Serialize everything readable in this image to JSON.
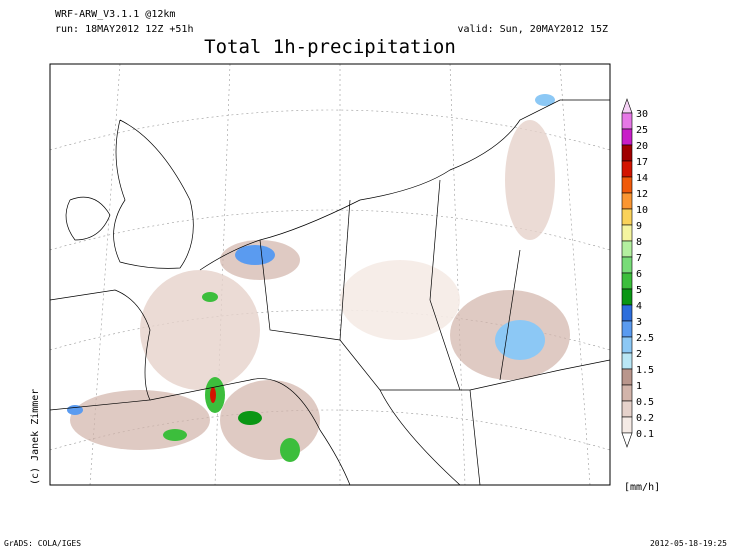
{
  "header": {
    "model": "WRF-ARW_V3.1.1 @12km",
    "run": "run: 18MAY2012 12Z +51h",
    "valid": "valid: Sun, 20MAY2012 15Z",
    "title": "Total 1h-precipitation"
  },
  "credit": "(c) Janek Zimmer",
  "legend": {
    "levels": [
      "30",
      "25",
      "20",
      "17",
      "14",
      "12",
      "10",
      "9",
      "8",
      "7",
      "6",
      "5",
      "4",
      "3",
      "2.5",
      "2",
      "1.5",
      "1",
      "0.5",
      "0.2",
      "0.1"
    ],
    "colors": [
      "#f5d2f5",
      "#e678e6",
      "#c81ec8",
      "#a00000",
      "#d21400",
      "#f05a0a",
      "#fa9632",
      "#fad25a",
      "#f5f5a0",
      "#b4f0a0",
      "#78dc78",
      "#3cbe3c",
      "#0a9614",
      "#2d6edc",
      "#5a9bf0",
      "#8cc8f5",
      "#b9e6f5",
      "#b9968c",
      "#d2b4aa",
      "#e6d2cb",
      "#f5ebe6",
      "#ffffff"
    ],
    "unit": "[mm/h]"
  },
  "footer": {
    "left": "GrADS: COLA/IGES",
    "right": "2012-05-18-19:25"
  }
}
